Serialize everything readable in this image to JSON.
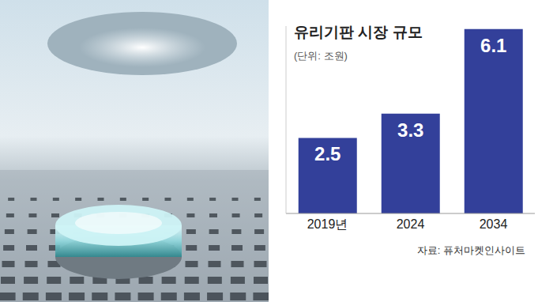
{
  "chart_data": {
    "type": "bar",
    "title": "유리기판 시장 규모",
    "subtitle": "(단위: 조원)",
    "categories": [
      "2019년",
      "2024",
      "2034"
    ],
    "values": [
      2.5,
      3.3,
      6.1
    ],
    "color": "#33409a",
    "ylim": [
      0,
      6.2
    ],
    "yticks": [],
    "grid": false,
    "data_labels": true,
    "tick_labels": "x",
    "source": "자료: 퓨처마켓인사이트"
  }
}
